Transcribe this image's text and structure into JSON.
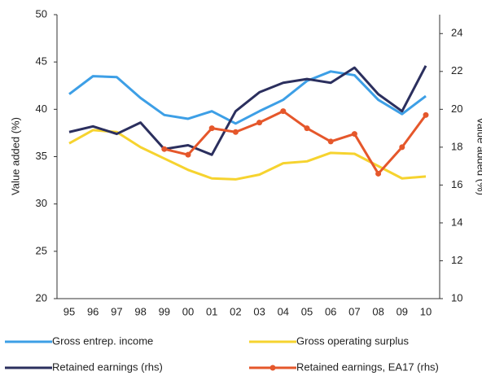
{
  "chart_data": {
    "type": "line",
    "categories": [
      "95",
      "96",
      "97",
      "98",
      "99",
      "00",
      "01",
      "02",
      "03",
      "04",
      "05",
      "06",
      "07",
      "08",
      "09",
      "10"
    ],
    "ylabel": "Value added (%)",
    "y2label": "Value added (%)",
    "ylim": [
      20,
      50
    ],
    "yticks": [
      20,
      25,
      30,
      35,
      40,
      45,
      50
    ],
    "y2lim": [
      10,
      25
    ],
    "y2ticks": [
      10,
      12,
      14,
      16,
      18,
      20,
      22,
      24
    ],
    "legend": "bottom",
    "series": [
      {
        "name": "Gross entrep. income",
        "color": "#3d9fe6",
        "values": [
          41.6,
          43.5,
          43.4,
          41.2,
          39.4,
          39.0,
          39.8,
          38.5,
          39.8,
          41.0,
          43.0,
          44.0,
          43.6,
          41.0,
          39.5,
          41.4
        ]
      },
      {
        "name": "Gross operating surplus",
        "color": "#f6d32f",
        "values": [
          36.4,
          37.8,
          37.6,
          36.0,
          34.8,
          33.6,
          32.7,
          32.6,
          33.1,
          34.3,
          34.5,
          35.4,
          35.3,
          34.0,
          32.7,
          32.9
        ]
      },
      {
        "name": "Retained earnings (rhs)",
        "color": "#2b2f5e",
        "axis": "y2",
        "values": [
          18.8,
          19.1,
          18.7,
          19.3,
          17.9,
          18.1,
          17.6,
          19.9,
          20.9,
          21.4,
          21.6,
          21.4,
          22.2,
          20.8,
          19.9,
          22.3
        ]
      },
      {
        "name": "Retained earnings, EA17 (rhs)",
        "color": "#e5572b",
        "axis": "y2",
        "markers": true,
        "values": [
          null,
          null,
          null,
          null,
          17.9,
          17.6,
          19.0,
          18.8,
          19.3,
          19.9,
          19.0,
          18.3,
          18.7,
          16.6,
          18.0,
          19.7
        ]
      }
    ]
  }
}
